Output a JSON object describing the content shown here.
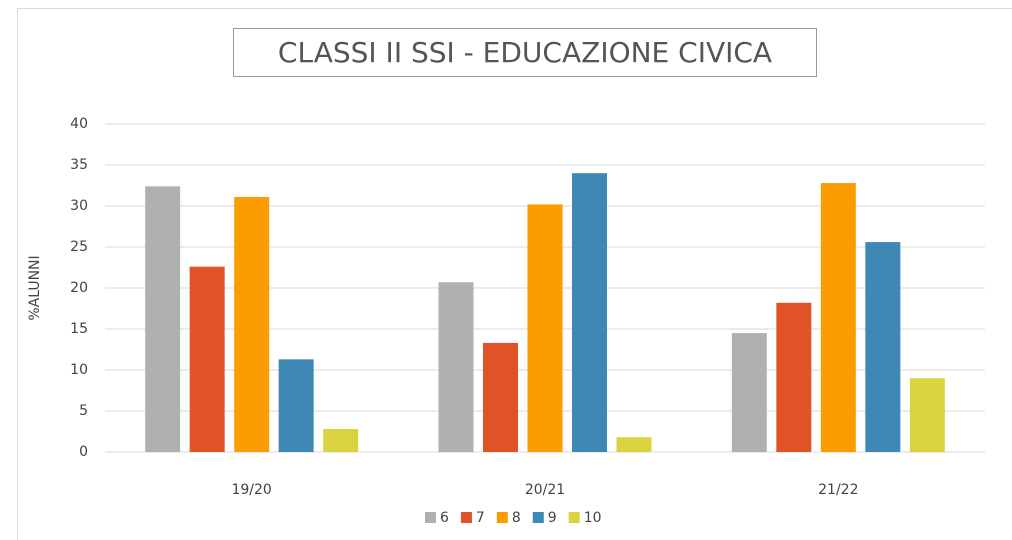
{
  "chart_data": {
    "type": "bar",
    "title": "CLASSI II SSI - EDUCAZIONE CIVICA",
    "y_label": "%ALUNNI",
    "categories": [
      "19/20",
      "20/21",
      "21/22"
    ],
    "series": [
      {
        "name": "6",
        "color": "#b0b0b0",
        "values": [
          32.4,
          20.7,
          14.5
        ]
      },
      {
        "name": "7",
        "color": "#e05327",
        "values": [
          22.6,
          13.3,
          18.2
        ]
      },
      {
        "name": "8",
        "color": "#fb9d00",
        "values": [
          31.1,
          30.2,
          32.8
        ]
      },
      {
        "name": "9",
        "color": "#3f88b5",
        "values": [
          11.3,
          34.0,
          25.6
        ]
      },
      {
        "name": "10",
        "color": "#d9d340",
        "values": [
          2.8,
          1.8,
          9.0
        ]
      }
    ],
    "ylim": [
      0,
      40
    ],
    "yticks": [
      0,
      5,
      10,
      15,
      20,
      25,
      30,
      35,
      40
    ],
    "grid": true,
    "legend": "bottom"
  }
}
